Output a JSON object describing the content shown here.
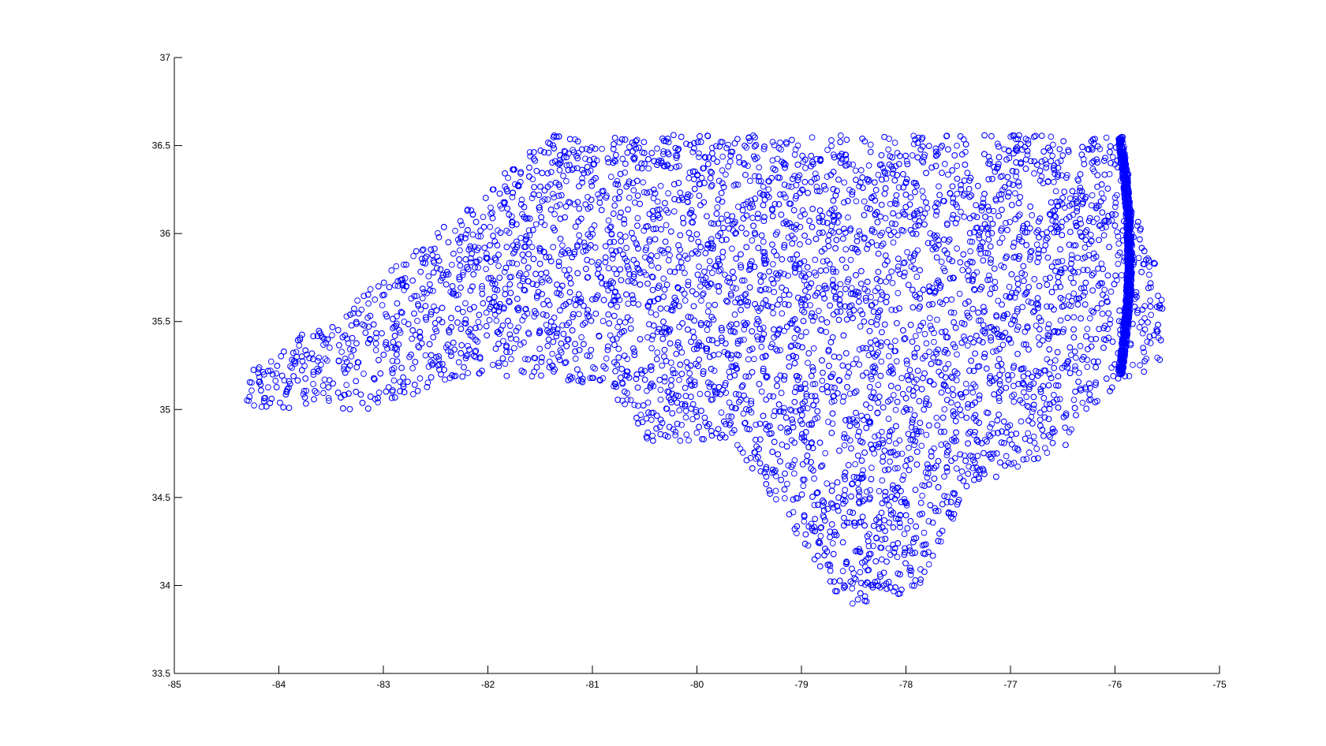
{
  "chart_data": {
    "type": "scatter",
    "title": "",
    "xlabel": "",
    "ylabel": "",
    "xlim": [
      -85,
      -75
    ],
    "ylim": [
      33.5,
      37
    ],
    "grid": false,
    "legend": "none",
    "marker": "circle-open",
    "marker_color": "#0000ff",
    "x_ticks": [
      {
        "value": -85,
        "label": "-85"
      },
      {
        "value": -84,
        "label": "-84"
      },
      {
        "value": -83,
        "label": "-83"
      },
      {
        "value": -82,
        "label": "-82"
      },
      {
        "value": -81,
        "label": "-81"
      },
      {
        "value": -80,
        "label": "-80"
      },
      {
        "value": -79,
        "label": "-79"
      },
      {
        "value": -78,
        "label": "-78"
      },
      {
        "value": -77,
        "label": "-77"
      },
      {
        "value": -76,
        "label": "-76"
      },
      {
        "value": -75,
        "label": "-75"
      }
    ],
    "y_ticks": [
      {
        "value": 33.5,
        "label": "33.5"
      },
      {
        "value": 34,
        "label": "34"
      },
      {
        "value": 34.5,
        "label": "34.5"
      },
      {
        "value": 35,
        "label": "35"
      },
      {
        "value": 35.5,
        "label": "35.5"
      },
      {
        "value": 36,
        "label": "36"
      },
      {
        "value": 36.5,
        "label": "36.5"
      },
      {
        "value": 37,
        "label": "37"
      }
    ],
    "region_outline": [
      [
        -84.32,
        35.0
      ],
      [
        -84.32,
        35.22
      ],
      [
        -84.1,
        35.26
      ],
      [
        -83.9,
        35.42
      ],
      [
        -83.55,
        35.46
      ],
      [
        -83.25,
        35.62
      ],
      [
        -82.95,
        35.78
      ],
      [
        -82.6,
        35.98
      ],
      [
        -82.3,
        36.1
      ],
      [
        -82.0,
        36.22
      ],
      [
        -81.9,
        36.32
      ],
      [
        -81.72,
        36.42
      ],
      [
        -81.65,
        36.56
      ],
      [
        -79.5,
        36.56
      ],
      [
        -77.2,
        36.56
      ],
      [
        -75.9,
        36.56
      ],
      [
        -75.88,
        36.4
      ],
      [
        -75.85,
        36.18
      ],
      [
        -75.72,
        35.98
      ],
      [
        -75.62,
        35.85
      ],
      [
        -75.5,
        35.55
      ],
      [
        -75.58,
        35.25
      ],
      [
        -75.95,
        35.15
      ],
      [
        -76.3,
        34.95
      ],
      [
        -76.55,
        34.72
      ],
      [
        -76.9,
        34.68
      ],
      [
        -77.2,
        34.6
      ],
      [
        -77.5,
        34.38
      ],
      [
        -77.72,
        34.2
      ],
      [
        -77.9,
        33.95
      ],
      [
        -78.2,
        33.92
      ],
      [
        -78.55,
        33.88
      ],
      [
        -78.8,
        34.05
      ],
      [
        -79.1,
        34.35
      ],
      [
        -79.42,
        34.62
      ],
      [
        -79.65,
        34.82
      ],
      [
        -80.0,
        34.82
      ],
      [
        -80.5,
        34.82
      ],
      [
        -80.6,
        34.92
      ],
      [
        -80.85,
        35.1
      ],
      [
        -81.05,
        35.15
      ],
      [
        -81.65,
        35.18
      ],
      [
        -82.3,
        35.18
      ],
      [
        -82.8,
        35.06
      ],
      [
        -83.1,
        35.0
      ],
      [
        -83.6,
        35.0
      ]
    ],
    "point_count": 7200,
    "series": [
      {
        "values": []
      }
    ]
  }
}
